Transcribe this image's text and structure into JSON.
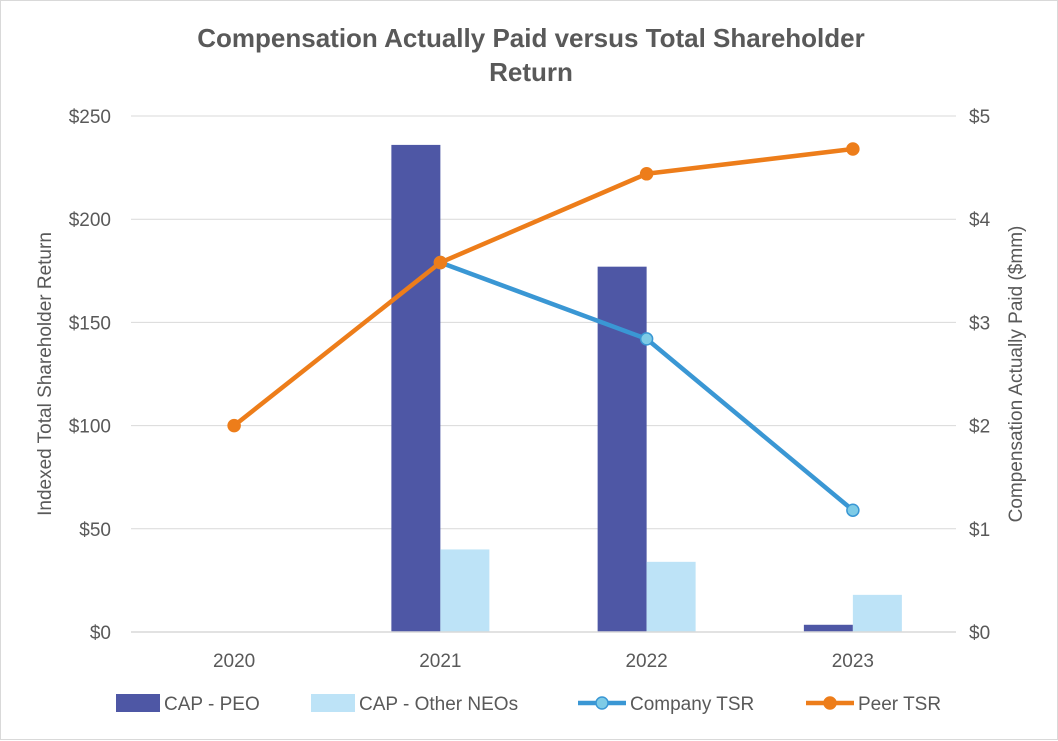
{
  "chart_data": {
    "type": "bar+line",
    "title_lines": [
      "Compensation Actually Paid versus Total Shareholder",
      "Return"
    ],
    "categories": [
      "2020",
      "2021",
      "2022",
      "2023"
    ],
    "y_left": {
      "label": "Indexed Total Shareholder Return",
      "range": [
        0,
        250
      ],
      "ticks": [
        0,
        50,
        100,
        150,
        200,
        250
      ],
      "tick_labels": [
        "$0",
        "$50",
        "$100",
        "$150",
        "$200",
        "$250"
      ]
    },
    "y_right": {
      "label": "Compensation Actually Paid ($mm)",
      "range": [
        0,
        5
      ],
      "ticks": [
        0,
        1,
        2,
        3,
        4,
        5
      ],
      "tick_labels": [
        "$0",
        "$1",
        "$2",
        "$3",
        "$4",
        "$5"
      ]
    },
    "bar_series": [
      {
        "name": "CAP - PEO",
        "axis": "right",
        "color": "#4e57a5",
        "values": [
          null,
          4.72,
          3.54,
          0.07
        ]
      },
      {
        "name": "CAP - Other NEOs",
        "axis": "right",
        "color": "#bde3f7",
        "values": [
          null,
          0.8,
          0.68,
          0.36
        ]
      }
    ],
    "line_series": [
      {
        "name": "Company TSR",
        "axis": "left",
        "color": "#3a97d4",
        "marker_fill": "#7ecbe6",
        "values": [
          null,
          179,
          142,
          59
        ]
      },
      {
        "name": "Peer TSR",
        "axis": "left",
        "color": "#ed7d1a",
        "marker_fill": "#ed7d1a",
        "values": [
          100,
          179,
          222,
          234
        ]
      }
    ],
    "grid": true,
    "legend_position": "bottom"
  }
}
